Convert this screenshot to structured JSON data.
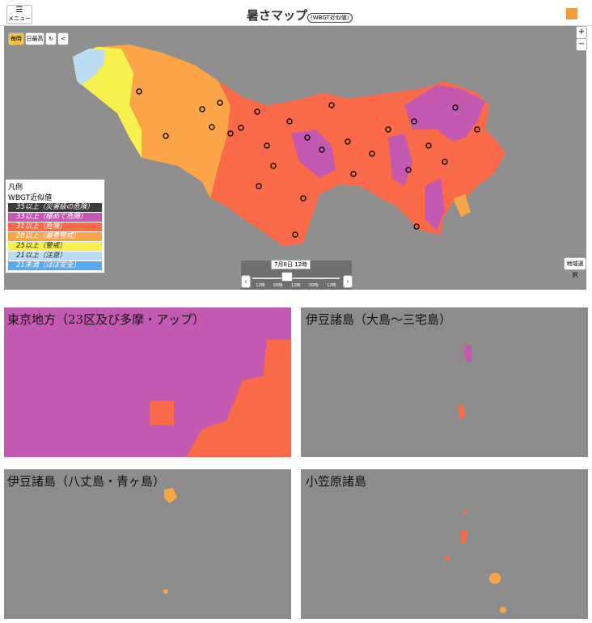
{
  "header": {
    "menu": "メニュー",
    "title": "暑さマップ",
    "subtitle": "(WBGT近似値)"
  },
  "controls": {
    "hourly": "毎時",
    "daily_max": "日最高",
    "region_select": "地域選択",
    "time": "7月8日 12時",
    "slider_ticks": [
      "12時",
      "00時",
      "12時",
      "00時",
      "12時"
    ]
  },
  "legend": {
    "title": "凡例",
    "subtitle": "WBGT近似値",
    "items": [
      {
        "label": "35以上（災害級の危険）",
        "color": "#3c3c3c"
      },
      {
        "label": "33以上（極めて危険）",
        "color": "#c459b2"
      },
      {
        "label": "31以上（危険）",
        "color": "#fa6a48"
      },
      {
        "label": "28以上（厳重警戒）",
        "color": "#fba448"
      },
      {
        "label": "25以上（警戒）",
        "color": "#f6f14c"
      },
      {
        "label": "21以上（注意）",
        "color": "#bcdcf4"
      },
      {
        "label": "21未満（ほぼ安全）",
        "color": "#5aa8ef"
      }
    ]
  },
  "panels": [
    {
      "title": "東京地方（23区及び多摩・アップ）"
    },
    {
      "title": "伊豆諸島（大島～三宅島）"
    },
    {
      "title": "伊豆諸島（八丈島・青ヶ島）"
    },
    {
      "title": "小笠原諸島"
    }
  ]
}
